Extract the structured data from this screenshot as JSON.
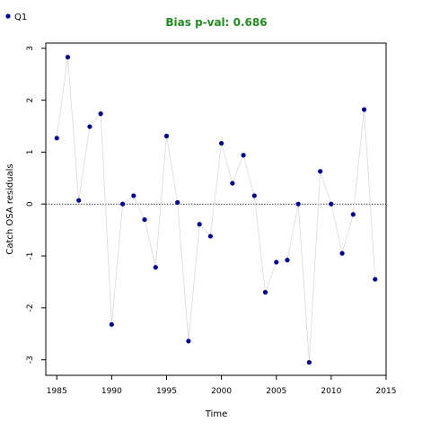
{
  "chart_data": {
    "type": "scatter",
    "title": "Bias p-val: 0.686",
    "title_color": "#228B22",
    "xlabel": "Time",
    "ylabel": "Catch OSA residuals",
    "xlim": [
      1984,
      2015
    ],
    "ylim": [
      -3.3,
      3.1
    ],
    "xticks": [
      1985,
      1990,
      1995,
      2000,
      2005,
      2010,
      2015
    ],
    "yticks": [
      -3,
      -2,
      -1,
      0,
      1,
      2,
      3
    ],
    "reference_line": 0,
    "grid": false,
    "legend": {
      "position": "top-left"
    },
    "series": [
      {
        "name": "Q1",
        "color": "#00008B",
        "line_color": "#d9d9d9",
        "x": [
          1985,
          1986,
          1987,
          1988,
          1989,
          1990,
          1991,
          1992,
          1993,
          1994,
          1995,
          1996,
          1997,
          1998,
          1999,
          2000,
          2001,
          2002,
          2003,
          2004,
          2005,
          2006,
          2007,
          2008,
          2009,
          2010,
          2011,
          2012,
          2013,
          2014
        ],
        "y": [
          1.27,
          2.83,
          0.07,
          1.49,
          1.74,
          -2.32,
          0.0,
          0.16,
          -0.3,
          -1.22,
          1.31,
          0.03,
          -2.64,
          -0.39,
          -0.62,
          1.17,
          0.4,
          0.94,
          0.16,
          -1.7,
          -1.12,
          -1.08,
          0.0,
          -3.05,
          0.63,
          0.0,
          -0.95,
          -0.2,
          1.82,
          -1.45
        ]
      }
    ]
  }
}
